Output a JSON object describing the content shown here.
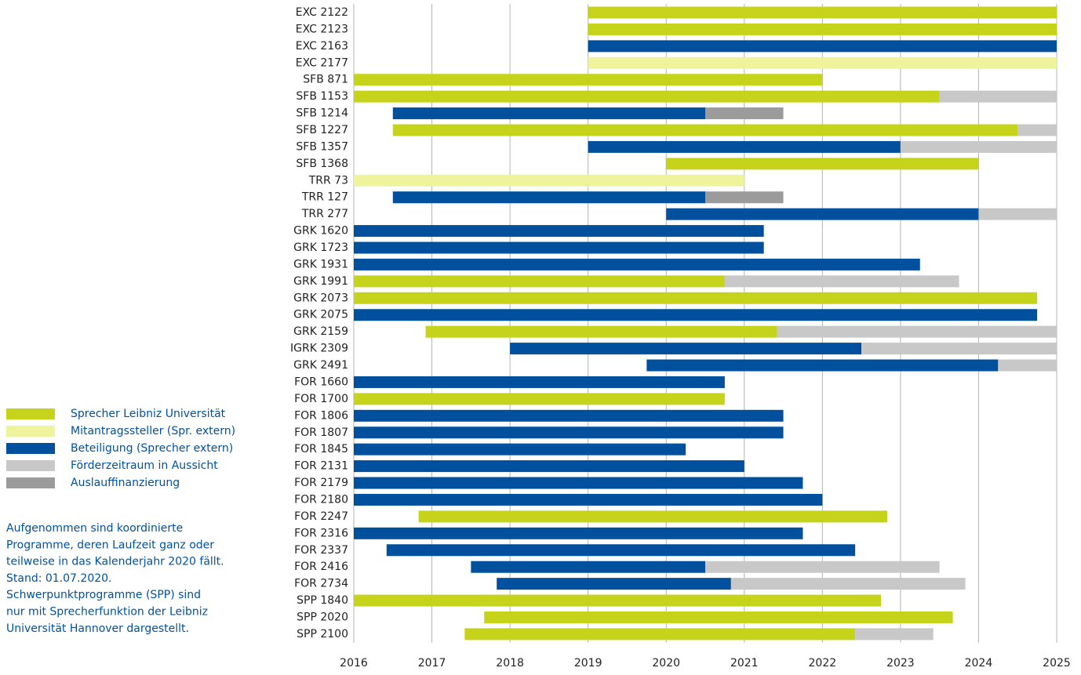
{
  "chart_data": {
    "type": "gantt",
    "xlim": [
      2016,
      2025
    ],
    "xticks": [
      2016,
      2017,
      2018,
      2019,
      2020,
      2021,
      2022,
      2023,
      2024,
      2025
    ],
    "grid": true,
    "legend": "left",
    "series": [
      {
        "name": "Sprecher Leibniz Universität",
        "color": "#c5d31a"
      },
      {
        "name": "Mitantragssteller (Spr. extern)",
        "color": "#eef39c"
      },
      {
        "name": "Beteiligung (Sprecher extern)",
        "color": "#00509e"
      },
      {
        "name": "Förderzeitraum in Aussicht",
        "color": "#c8c8c8"
      },
      {
        "name": "Auslauffinanzierung",
        "color": "#9b9b9b"
      }
    ],
    "rows": [
      {
        "label": "EXC 2122",
        "segments": [
          {
            "start": 2019,
            "end": 2025,
            "series": 0
          }
        ]
      },
      {
        "label": "EXC 2123",
        "segments": [
          {
            "start": 2019,
            "end": 2025,
            "series": 0
          }
        ]
      },
      {
        "label": "EXC 2163",
        "segments": [
          {
            "start": 2019,
            "end": 2025,
            "series": 2
          }
        ]
      },
      {
        "label": "EXC 2177",
        "segments": [
          {
            "start": 2019,
            "end": 2025,
            "series": 1
          }
        ]
      },
      {
        "label": "SFB 871",
        "segments": [
          {
            "start": 2016,
            "end": 2022,
            "series": 0
          }
        ]
      },
      {
        "label": "SFB 1153",
        "segments": [
          {
            "start": 2016,
            "end": 2023.5,
            "series": 0
          },
          {
            "start": 2023.5,
            "end": 2025,
            "series": 3
          }
        ]
      },
      {
        "label": "SFB 1214",
        "segments": [
          {
            "start": 2016.5,
            "end": 2020.5,
            "series": 2
          },
          {
            "start": 2020.5,
            "end": 2021.5,
            "series": 4
          }
        ]
      },
      {
        "label": "SFB 1227",
        "segments": [
          {
            "start": 2016.5,
            "end": 2024.5,
            "series": 0
          },
          {
            "start": 2024.5,
            "end": 2025,
            "series": 3
          }
        ]
      },
      {
        "label": "SFB 1357",
        "segments": [
          {
            "start": 2019,
            "end": 2023,
            "series": 2
          },
          {
            "start": 2023,
            "end": 2025,
            "series": 3
          }
        ]
      },
      {
        "label": "SFB 1368",
        "segments": [
          {
            "start": 2020,
            "end": 2024,
            "series": 0
          }
        ]
      },
      {
        "label": "TRR 73",
        "segments": [
          {
            "start": 2016,
            "end": 2021,
            "series": 1
          }
        ]
      },
      {
        "label": "TRR 127",
        "segments": [
          {
            "start": 2016.5,
            "end": 2020.5,
            "series": 2
          },
          {
            "start": 2020.5,
            "end": 2021.5,
            "series": 4
          }
        ]
      },
      {
        "label": "TRR 277",
        "segments": [
          {
            "start": 2020,
            "end": 2024,
            "series": 2
          },
          {
            "start": 2024,
            "end": 2025,
            "series": 3
          }
        ]
      },
      {
        "label": "GRK 1620",
        "segments": [
          {
            "start": 2016,
            "end": 2021.25,
            "series": 2
          }
        ]
      },
      {
        "label": "GRK 1723",
        "segments": [
          {
            "start": 2016,
            "end": 2021.25,
            "series": 2
          }
        ]
      },
      {
        "label": "GRK 1931",
        "segments": [
          {
            "start": 2016,
            "end": 2023.25,
            "series": 2
          }
        ]
      },
      {
        "label": "GRK 1991",
        "segments": [
          {
            "start": 2016,
            "end": 2020.75,
            "series": 0
          },
          {
            "start": 2020.75,
            "end": 2023.75,
            "series": 3
          }
        ]
      },
      {
        "label": "GRK 2073",
        "segments": [
          {
            "start": 2016,
            "end": 2024.75,
            "series": 0
          }
        ]
      },
      {
        "label": "GRK 2075",
        "segments": [
          {
            "start": 2016,
            "end": 2024.75,
            "series": 2
          }
        ]
      },
      {
        "label": "GRK 2159",
        "segments": [
          {
            "start": 2016.92,
            "end": 2021.42,
            "series": 0
          },
          {
            "start": 2021.42,
            "end": 2025,
            "series": 3
          }
        ]
      },
      {
        "label": "IGRK 2309",
        "segments": [
          {
            "start": 2018,
            "end": 2022.5,
            "series": 2
          },
          {
            "start": 2022.5,
            "end": 2025,
            "series": 3
          }
        ]
      },
      {
        "label": "GRK 2491",
        "segments": [
          {
            "start": 2019.75,
            "end": 2024.25,
            "series": 2
          },
          {
            "start": 2024.25,
            "end": 2025,
            "series": 3
          }
        ]
      },
      {
        "label": "FOR 1660",
        "segments": [
          {
            "start": 2016,
            "end": 2020.75,
            "series": 2
          }
        ]
      },
      {
        "label": "FOR 1700",
        "segments": [
          {
            "start": 2016,
            "end": 2020.75,
            "series": 0
          }
        ]
      },
      {
        "label": "FOR 1806",
        "segments": [
          {
            "start": 2016,
            "end": 2021.5,
            "series": 2
          }
        ]
      },
      {
        "label": "FOR 1807",
        "segments": [
          {
            "start": 2016,
            "end": 2021.5,
            "series": 2
          }
        ]
      },
      {
        "label": "FOR 1845",
        "segments": [
          {
            "start": 2016,
            "end": 2020.25,
            "series": 2
          }
        ]
      },
      {
        "label": "FOR 2131",
        "segments": [
          {
            "start": 2016,
            "end": 2021,
            "series": 2
          }
        ]
      },
      {
        "label": "FOR 2179",
        "segments": [
          {
            "start": 2016,
            "end": 2021.75,
            "series": 2
          }
        ]
      },
      {
        "label": "FOR 2180",
        "segments": [
          {
            "start": 2016,
            "end": 2022,
            "series": 2
          }
        ]
      },
      {
        "label": "FOR 2247",
        "segments": [
          {
            "start": 2016.83,
            "end": 2022.83,
            "series": 0
          }
        ]
      },
      {
        "label": "FOR 2316",
        "segments": [
          {
            "start": 2016,
            "end": 2021.75,
            "series": 2
          }
        ]
      },
      {
        "label": "FOR 2337",
        "segments": [
          {
            "start": 2016.42,
            "end": 2022.42,
            "series": 2
          }
        ]
      },
      {
        "label": "FOR 2416",
        "segments": [
          {
            "start": 2017.5,
            "end": 2020.5,
            "series": 2
          },
          {
            "start": 2020.5,
            "end": 2023.5,
            "series": 3
          }
        ]
      },
      {
        "label": "FOR 2734",
        "segments": [
          {
            "start": 2017.83,
            "end": 2020.83,
            "series": 2
          },
          {
            "start": 2020.83,
            "end": 2023.83,
            "series": 3
          }
        ]
      },
      {
        "label": "SPP 1840",
        "segments": [
          {
            "start": 2016,
            "end": 2022.75,
            "series": 0
          }
        ]
      },
      {
        "label": "SPP 2020",
        "segments": [
          {
            "start": 2017.67,
            "end": 2023.67,
            "series": 0
          }
        ]
      },
      {
        "label": "SPP 2100",
        "segments": [
          {
            "start": 2017.42,
            "end": 2022.42,
            "series": 0
          },
          {
            "start": 2022.42,
            "end": 2023.42,
            "series": 3
          }
        ]
      }
    ],
    "notes": [
      "Aufgenommen sind koordinierte",
      "Programme, deren Laufzeit ganz oder",
      "teilweise in das Kalenderjahr 2020 fällt.",
      "Stand: 01.07.2020.",
      "Schwerpunktprogramme (SPP) sind",
      "nur mit Sprecherfunktion der Leibniz",
      "Universität Hannover dargestellt."
    ]
  }
}
